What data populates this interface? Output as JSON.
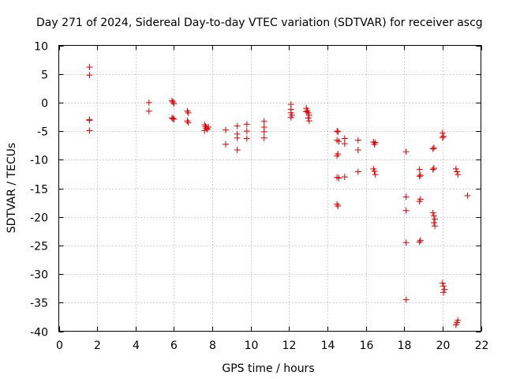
{
  "chart_data": {
    "type": "scatter",
    "title": "Day 271 of 2024, Sidereal Day-to-day VTEC variation (SDTVAR) for receiver ascg",
    "xlabel": "GPS time / hours",
    "ylabel": "SDTVAR / TECUs",
    "xlim": [
      0,
      22
    ],
    "ylim": [
      -40,
      10
    ],
    "xticks": [
      0,
      2,
      4,
      6,
      8,
      10,
      12,
      14,
      16,
      18,
      20,
      22
    ],
    "yticks": [
      10,
      5,
      0,
      -5,
      -10,
      -15,
      -20,
      -25,
      -30,
      -35,
      -40
    ],
    "grid": true,
    "marker": "+",
    "color": "#e00000",
    "series": [
      {
        "name": "SDTVAR",
        "points": [
          [
            1.6,
            6.2
          ],
          [
            1.6,
            4.8
          ],
          [
            1.6,
            -3.0
          ],
          [
            1.6,
            -3.1
          ],
          [
            1.6,
            -4.9
          ],
          [
            4.7,
            0.0
          ],
          [
            4.7,
            -1.5
          ],
          [
            5.9,
            0.3
          ],
          [
            5.95,
            0.1
          ],
          [
            6.0,
            -0.2
          ],
          [
            5.9,
            -2.7
          ],
          [
            6.0,
            -2.9
          ],
          [
            5.95,
            -2.8
          ],
          [
            6.7,
            -1.5
          ],
          [
            6.75,
            -1.8
          ],
          [
            6.7,
            -3.2
          ],
          [
            6.75,
            -3.5
          ],
          [
            7.6,
            -3.9
          ],
          [
            7.65,
            -4.2
          ],
          [
            7.7,
            -4.5
          ],
          [
            7.75,
            -4.7
          ],
          [
            7.6,
            -4.9
          ],
          [
            7.8,
            -4.3
          ],
          [
            8.7,
            -4.8
          ],
          [
            8.7,
            -7.3
          ],
          [
            9.3,
            -4.1
          ],
          [
            9.3,
            -5.5
          ],
          [
            9.3,
            -6.2
          ],
          [
            9.3,
            -8.3
          ],
          [
            9.8,
            -3.8
          ],
          [
            9.8,
            -5.0
          ],
          [
            9.8,
            -6.3
          ],
          [
            10.7,
            -3.3
          ],
          [
            10.7,
            -4.3
          ],
          [
            10.7,
            -5.1
          ],
          [
            10.7,
            -6.2
          ],
          [
            12.1,
            -0.3
          ],
          [
            12.1,
            -1.2
          ],
          [
            12.1,
            -1.8
          ],
          [
            12.15,
            -2.2
          ],
          [
            12.1,
            -2.6
          ],
          [
            12.9,
            -1.0
          ],
          [
            12.95,
            -1.4
          ],
          [
            13.0,
            -1.8
          ],
          [
            13.05,
            -2.2
          ],
          [
            13.0,
            -2.7
          ],
          [
            13.05,
            -3.2
          ],
          [
            12.9,
            -1.6
          ],
          [
            14.5,
            -5.0
          ],
          [
            14.55,
            -5.1
          ],
          [
            14.5,
            -6.6
          ],
          [
            14.6,
            -6.8
          ],
          [
            14.5,
            -9.3
          ],
          [
            14.55,
            -9.0
          ],
          [
            14.5,
            -13.1
          ],
          [
            14.6,
            -13.2
          ],
          [
            14.5,
            -17.8
          ],
          [
            14.55,
            -18.1
          ],
          [
            14.9,
            -6.3
          ],
          [
            14.9,
            -7.2
          ],
          [
            14.9,
            -13.0
          ],
          [
            15.6,
            -6.6
          ],
          [
            15.6,
            -8.3
          ],
          [
            15.6,
            -12.1
          ],
          [
            16.4,
            -6.9
          ],
          [
            16.45,
            -7.3
          ],
          [
            16.5,
            -7.0
          ],
          [
            16.4,
            -11.6
          ],
          [
            16.45,
            -12.0
          ],
          [
            16.5,
            -12.6
          ],
          [
            18.1,
            -8.6
          ],
          [
            18.1,
            -16.5
          ],
          [
            18.1,
            -18.9
          ],
          [
            18.1,
            -24.5
          ],
          [
            18.1,
            -34.5
          ],
          [
            18.8,
            -11.7
          ],
          [
            18.85,
            -12.7
          ],
          [
            18.8,
            -12.9
          ],
          [
            18.85,
            -16.9
          ],
          [
            18.8,
            -17.3
          ],
          [
            18.85,
            -24.1
          ],
          [
            18.8,
            -24.4
          ],
          [
            19.5,
            -8.1
          ],
          [
            19.55,
            -7.9
          ],
          [
            19.5,
            -11.7
          ],
          [
            19.55,
            -11.5
          ],
          [
            19.5,
            -19.3
          ],
          [
            19.55,
            -19.8
          ],
          [
            19.6,
            -20.4
          ],
          [
            19.55,
            -21.0
          ],
          [
            19.6,
            -21.6
          ],
          [
            20.0,
            -5.3
          ],
          [
            20.05,
            -5.9
          ],
          [
            20.0,
            -6.1
          ],
          [
            20.0,
            -31.6
          ],
          [
            20.05,
            -32.1
          ],
          [
            20.1,
            -32.7
          ],
          [
            20.05,
            -33.2
          ],
          [
            20.7,
            -11.6
          ],
          [
            20.75,
            -12.1
          ],
          [
            20.8,
            -12.6
          ],
          [
            20.7,
            -38.9
          ],
          [
            20.75,
            -38.5
          ],
          [
            20.8,
            -38.1
          ],
          [
            21.3,
            -16.3
          ]
        ]
      }
    ]
  }
}
